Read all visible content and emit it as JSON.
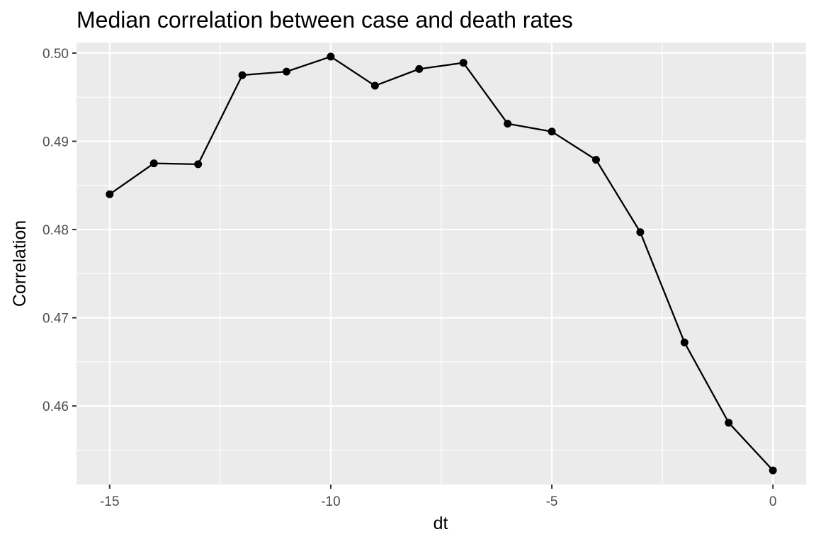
{
  "chart_data": {
    "type": "line",
    "title": "Median correlation between case and death rates",
    "xlabel": "dt",
    "ylabel": "Correlation",
    "x": [
      -15,
      -14,
      -13,
      -12,
      -11,
      -10,
      -9,
      -8,
      -7,
      -6,
      -5,
      -4,
      -3,
      -2,
      -1,
      0
    ],
    "y": [
      0.484,
      0.4875,
      0.4874,
      0.4975,
      0.4979,
      0.4996,
      0.4963,
      0.4982,
      0.4989,
      0.492,
      0.4911,
      0.4879,
      0.4797,
      0.4672,
      0.4581,
      0.4527
    ],
    "xlim": [
      -15.75,
      0.75
    ],
    "ylim": [
      0.4511,
      0.5012
    ],
    "x_ticks": [
      -15,
      -10,
      -5,
      0
    ],
    "x_tick_labels": [
      "-15",
      "-10",
      "-5",
      "0"
    ],
    "x_minor_ticks": [
      -12.5,
      -7.5,
      -2.5
    ],
    "y_ticks": [
      0.46,
      0.47,
      0.48,
      0.49,
      0.5
    ],
    "y_tick_labels": [
      "0.46",
      "0.47",
      "0.48",
      "0.49",
      "0.50"
    ],
    "y_minor_ticks": [
      0.455,
      0.465,
      0.475,
      0.485,
      0.495
    ],
    "grid": true,
    "colors": {
      "panel_background": "#ebebeb",
      "grid_line": "#ffffff",
      "series": "#000000",
      "tick_label": "#4d4d4d",
      "tick_mark": "#333333"
    }
  }
}
